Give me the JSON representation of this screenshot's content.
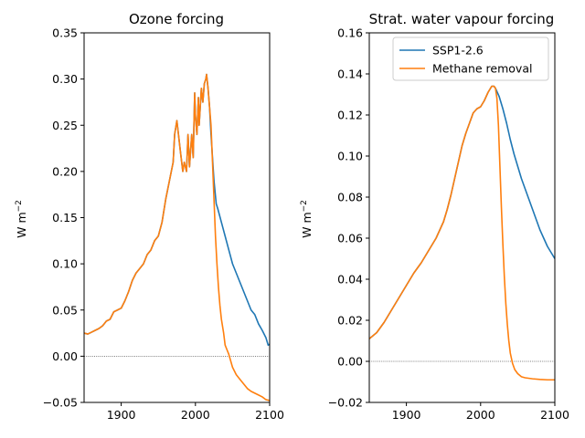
{
  "chart_data": [
    {
      "type": "line",
      "title": "Ozone forcing",
      "xlabel": "",
      "ylabel": "W m",
      "ylabel_sup": "−2",
      "xlim": [
        1850,
        2100
      ],
      "ylim": [
        -0.05,
        0.35
      ],
      "xticks": [
        "1900",
        "2000",
        "2100"
      ],
      "yticks": [
        "−0.05",
        "0.00",
        "0.05",
        "0.10",
        "0.15",
        "0.20",
        "0.25",
        "0.30",
        "0.35"
      ],
      "zero_line": true,
      "series": [
        {
          "name": "SSP1-2.6",
          "color": "#1f77b4",
          "x": [
            1850,
            1855,
            1860,
            1865,
            1870,
            1875,
            1880,
            1885,
            1890,
            1895,
            1900,
            1905,
            1910,
            1915,
            1920,
            1925,
            1930,
            1935,
            1940,
            1945,
            1950,
            1955,
            1960,
            1965,
            1970,
            1972,
            1975,
            1980,
            1983,
            1985,
            1988,
            1990,
            1992,
            1995,
            1997,
            1999,
            2000,
            2002,
            2004,
            2005,
            2008,
            2010,
            2012,
            2014,
            2015,
            2017,
            2019,
            2021,
            2025,
            2028,
            2030,
            2035,
            2040,
            2045,
            2050,
            2055,
            2060,
            2065,
            2070,
            2075,
            2080,
            2085,
            2090,
            2095,
            2098,
            2100
          ],
          "y": [
            0.025,
            0.024,
            0.026,
            0.028,
            0.03,
            0.033,
            0.038,
            0.04,
            0.048,
            0.05,
            0.052,
            0.06,
            0.07,
            0.082,
            0.09,
            0.095,
            0.1,
            0.11,
            0.115,
            0.125,
            0.13,
            0.145,
            0.17,
            0.19,
            0.21,
            0.24,
            0.255,
            0.22,
            0.2,
            0.21,
            0.2,
            0.24,
            0.205,
            0.24,
            0.215,
            0.285,
            0.26,
            0.24,
            0.28,
            0.25,
            0.29,
            0.275,
            0.295,
            0.3,
            0.305,
            0.29,
            0.27,
            0.24,
            0.19,
            0.165,
            0.16,
            0.145,
            0.13,
            0.115,
            0.1,
            0.09,
            0.08,
            0.07,
            0.06,
            0.05,
            0.045,
            0.035,
            0.028,
            0.02,
            0.012,
            0.013
          ]
        },
        {
          "name": "Methane removal",
          "color": "#ff7f0e",
          "x": [
            1850,
            1855,
            1860,
            1865,
            1870,
            1875,
            1880,
            1885,
            1890,
            1895,
            1900,
            1905,
            1910,
            1915,
            1920,
            1925,
            1930,
            1935,
            1940,
            1945,
            1950,
            1955,
            1960,
            1965,
            1970,
            1972,
            1975,
            1980,
            1983,
            1985,
            1988,
            1990,
            1992,
            1995,
            1997,
            1999,
            2000,
            2002,
            2004,
            2005,
            2008,
            2010,
            2012,
            2014,
            2015,
            2017,
            2019,
            2021,
            2023,
            2025,
            2027,
            2029,
            2031,
            2033,
            2035,
            2038,
            2040,
            2045,
            2050,
            2055,
            2060,
            2065,
            2070,
            2075,
            2080,
            2085,
            2090,
            2095,
            2100
          ],
          "y": [
            0.025,
            0.024,
            0.026,
            0.028,
            0.03,
            0.033,
            0.038,
            0.04,
            0.048,
            0.05,
            0.052,
            0.06,
            0.07,
            0.082,
            0.09,
            0.095,
            0.1,
            0.11,
            0.115,
            0.125,
            0.13,
            0.145,
            0.17,
            0.19,
            0.21,
            0.24,
            0.255,
            0.22,
            0.2,
            0.21,
            0.2,
            0.24,
            0.205,
            0.24,
            0.215,
            0.285,
            0.26,
            0.24,
            0.28,
            0.25,
            0.29,
            0.275,
            0.295,
            0.3,
            0.305,
            0.29,
            0.27,
            0.25,
            0.21,
            0.17,
            0.13,
            0.1,
            0.075,
            0.055,
            0.04,
            0.025,
            0.012,
            0.002,
            -0.012,
            -0.02,
            -0.025,
            -0.03,
            -0.035,
            -0.038,
            -0.04,
            -0.042,
            -0.044,
            -0.047,
            -0.048
          ]
        }
      ]
    },
    {
      "type": "line",
      "title": "Strat. water vapour forcing",
      "xlabel": "",
      "ylabel": "W m",
      "ylabel_sup": "−2",
      "xlim": [
        1850,
        2100
      ],
      "ylim": [
        -0.02,
        0.16
      ],
      "xticks": [
        "1900",
        "2000",
        "2100"
      ],
      "yticks": [
        "−0.02",
        "0.00",
        "0.02",
        "0.04",
        "0.06",
        "0.08",
        "0.10",
        "0.12",
        "0.14",
        "0.16"
      ],
      "zero_line": true,
      "legend": {
        "placement": "upper-right",
        "entries": [
          "SSP1-2.6",
          "Methane removal"
        ]
      },
      "series": [
        {
          "name": "SSP1-2.6",
          "color": "#1f77b4",
          "x": [
            1850,
            1860,
            1870,
            1880,
            1890,
            1900,
            1910,
            1920,
            1930,
            1940,
            1950,
            1955,
            1960,
            1965,
            1970,
            1975,
            1980,
            1985,
            1990,
            1995,
            2000,
            2005,
            2010,
            2015,
            2018,
            2020,
            2025,
            2030,
            2035,
            2040,
            2045,
            2050,
            2055,
            2060,
            2065,
            2070,
            2075,
            2080,
            2085,
            2090,
            2095,
            2100
          ],
          "y": [
            0.011,
            0.014,
            0.019,
            0.025,
            0.031,
            0.037,
            0.043,
            0.048,
            0.054,
            0.06,
            0.068,
            0.074,
            0.081,
            0.089,
            0.097,
            0.105,
            0.111,
            0.116,
            0.121,
            0.123,
            0.124,
            0.127,
            0.131,
            0.134,
            0.134,
            0.133,
            0.129,
            0.123,
            0.116,
            0.108,
            0.101,
            0.095,
            0.089,
            0.084,
            0.079,
            0.074,
            0.069,
            0.064,
            0.06,
            0.056,
            0.053,
            0.05
          ]
        },
        {
          "name": "Methane removal",
          "color": "#ff7f0e",
          "x": [
            1850,
            1860,
            1870,
            1880,
            1890,
            1900,
            1910,
            1920,
            1930,
            1940,
            1950,
            1955,
            1960,
            1965,
            1970,
            1975,
            1980,
            1985,
            1990,
            1995,
            2000,
            2005,
            2010,
            2015,
            2018,
            2020,
            2022,
            2024,
            2026,
            2028,
            2030,
            2032,
            2034,
            2036,
            2038,
            2040,
            2043,
            2046,
            2050,
            2055,
            2060,
            2070,
            2080,
            2090,
            2100
          ],
          "y": [
            0.011,
            0.014,
            0.019,
            0.025,
            0.031,
            0.037,
            0.043,
            0.048,
            0.054,
            0.06,
            0.068,
            0.074,
            0.081,
            0.089,
            0.097,
            0.105,
            0.111,
            0.116,
            0.121,
            0.123,
            0.124,
            0.127,
            0.131,
            0.134,
            0.134,
            0.133,
            0.128,
            0.115,
            0.095,
            0.075,
            0.057,
            0.041,
            0.028,
            0.018,
            0.01,
            0.004,
            -0.001,
            -0.004,
            -0.006,
            -0.0075,
            -0.008,
            -0.0085,
            -0.0088,
            -0.009,
            -0.009
          ]
        }
      ]
    }
  ]
}
